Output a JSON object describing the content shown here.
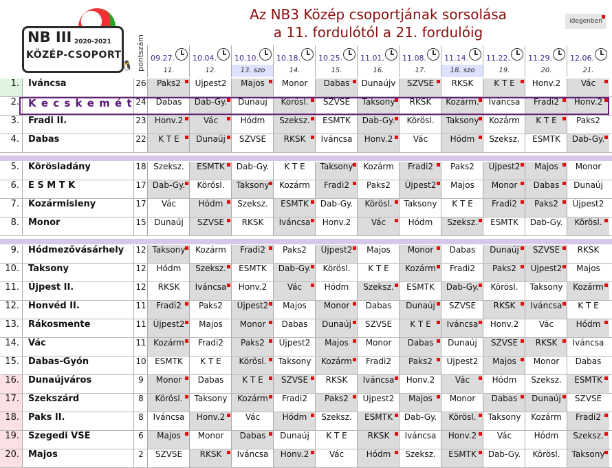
{
  "logo": {
    "nb": "NB III",
    "years": "2020-2021",
    "kozep": "KÖZÉP-CSOPORT"
  },
  "title": {
    "line1": "Az NB3 Közép csoportjának sorsolása",
    "line2": "a 11. fordulótól a 21. fordulóig"
  },
  "legend": "idegenben",
  "y_label": "pontszám",
  "colors": {
    "title": "#8b0d0d",
    "away_bg": "#dcdcdc",
    "marker": "#e01010",
    "separator": "#d8c7ea",
    "highlight_border": "#6a1f7a",
    "rank_green": "#dff5df",
    "rank_pink": "#fbe0e4"
  },
  "rounds": [
    {
      "date": "09.27.",
      "round": "11.",
      "sat": false
    },
    {
      "date": "10.04.",
      "round": "12.",
      "sat": false
    },
    {
      "date": "10.10.",
      "round": "13. szo",
      "sat": true
    },
    {
      "date": "10.18.",
      "round": "14.",
      "sat": false
    },
    {
      "date": "10.25.",
      "round": "15.",
      "sat": false
    },
    {
      "date": "11.01.",
      "round": "16.",
      "sat": false
    },
    {
      "date": "11.08.",
      "round": "17.",
      "sat": false
    },
    {
      "date": "11.14.",
      "round": "18. szo",
      "sat": true
    },
    {
      "date": "11.22.",
      "round": "19.",
      "sat": false
    },
    {
      "date": "11.29.",
      "round": "20.",
      "sat": false
    },
    {
      "date": "12.06.",
      "round": "21.",
      "sat": false
    }
  ],
  "rows": [
    {
      "rank": "1.",
      "team": "Iváncsa",
      "pts": "26",
      "opp": [
        "Paks2",
        "Újpest2",
        "Majos",
        "Monor",
        "Dabas",
        "Dunaújv",
        "SZVSE",
        "RKSK",
        "K T E",
        "Honv.2",
        "Vác"
      ],
      "away": [
        1,
        0,
        1,
        0,
        1,
        0,
        1,
        0,
        1,
        0,
        1
      ]
    },
    {
      "rank": "2.",
      "team": "K e c s k e m é t",
      "pts": "24",
      "opp": [
        "Dabas",
        "Dab-Gy.",
        "Dunaúj",
        "Körösl.",
        "SZVSE",
        "Taksony",
        "RKSK",
        "Kozárm.",
        "Iváncsa",
        "Fradi2",
        "Honv.2"
      ],
      "away": [
        0,
        1,
        0,
        1,
        0,
        1,
        0,
        1,
        0,
        1,
        1
      ]
    },
    {
      "rank": "3.",
      "team": "Fradi II.",
      "pts": "23",
      "opp": [
        "Honv.2",
        "Vác",
        "Hódm",
        "Szeksz.",
        "ESMTK",
        "Dab-Gy.",
        "Körösl.",
        "Taksony",
        "Kozárm",
        "K T E",
        "Paks2"
      ],
      "away": [
        1,
        1,
        0,
        1,
        0,
        1,
        0,
        1,
        0,
        1,
        0
      ]
    },
    {
      "rank": "4.",
      "team": "Dabas",
      "pts": "22",
      "opp": [
        "K T E",
        "Dunaúj",
        "SZVSE",
        "RKSK",
        "Iváncsa",
        "Honv.2",
        "Vác",
        "Hódm",
        "Szeksz.",
        "ESMTK",
        "Dab-Gy."
      ],
      "away": [
        1,
        1,
        0,
        1,
        0,
        1,
        0,
        1,
        0,
        0,
        1
      ]
    },
    {
      "sep": true
    },
    {
      "rank": "5.",
      "team": "Körösladány",
      "pts": "18",
      "opp": [
        "Szeksz.",
        "ESMTK",
        "Dab-Gy.",
        "K T E",
        "Taksony",
        "Kozárm",
        "Fradi2",
        "Paks2",
        "Újpest2",
        "Majos",
        "Monor"
      ],
      "away": [
        0,
        1,
        0,
        0,
        1,
        0,
        1,
        0,
        1,
        1,
        0
      ]
    },
    {
      "rank": "6.",
      "team": "E S M T K",
      "pts": "17",
      "opp": [
        "Dab-Gy.",
        "Körösl.",
        "Taksony",
        "Kozárm",
        "Fradi2",
        "Paks2",
        "Újpest2",
        "Majos",
        "Monor",
        "Dabas",
        "Dunaúj"
      ],
      "away": [
        1,
        0,
        1,
        0,
        1,
        0,
        1,
        0,
        1,
        1,
        0
      ]
    },
    {
      "rank": "7.",
      "team": "Kozármisleny",
      "pts": "17",
      "opp": [
        "Vác",
        "Hódm",
        "Szeksz.",
        "ESMTK",
        "Dab-Gy.",
        "Körösl.",
        "Taksony",
        "K T E",
        "Fradi2",
        "Paks2",
        "Újpest2"
      ],
      "away": [
        0,
        1,
        0,
        1,
        0,
        1,
        0,
        0,
        1,
        1,
        0
      ]
    },
    {
      "rank": "8.",
      "team": "Monor",
      "pts": "15",
      "opp": [
        "Dunaúj",
        "SZVSE",
        "RKSK",
        "Iváncsa",
        "Honv.2",
        "Vác",
        "Hódm",
        "Szeksz.",
        "ESMTK",
        "Dab-Gy.",
        "Körösl."
      ],
      "away": [
        0,
        1,
        0,
        1,
        0,
        1,
        0,
        1,
        0,
        0,
        1
      ]
    },
    {
      "sep": true
    },
    {
      "rank": "9.",
      "team": "Hódmezővásárhely",
      "pts": "12",
      "opp": [
        "Taksony",
        "Kozárm",
        "Fradi2",
        "Paks2",
        "Újpest2",
        "Majos",
        "Monor",
        "Dabas",
        "Dunaúj",
        "SZVSE",
        "RKSK"
      ],
      "away": [
        1,
        0,
        1,
        0,
        1,
        0,
        1,
        0,
        1,
        1,
        0
      ]
    },
    {
      "rank": "10.",
      "team": "Taksony",
      "pts": "12",
      "opp": [
        "Hódm",
        "Szeksz.",
        "ESMTK",
        "Dab-Gy.",
        "Körösl.",
        "K T E",
        "Kozárm",
        "Fradi2",
        "Paks2",
        "Újpest2",
        "Majos"
      ],
      "away": [
        0,
        1,
        0,
        1,
        0,
        0,
        1,
        0,
        1,
        1,
        0
      ]
    },
    {
      "rank": "11.",
      "team": "Újpest II.",
      "pts": "12",
      "opp": [
        "RKSK",
        "Iváncsa",
        "Honv.2",
        "Vác",
        "Hódm",
        "Szeksz.",
        "ESMTK",
        "Dab-Gy.",
        "Körösl.",
        "Taksony",
        "Kozárm"
      ],
      "away": [
        0,
        1,
        0,
        1,
        0,
        1,
        0,
        1,
        0,
        0,
        1
      ]
    },
    {
      "rank": "12.",
      "team": "Honvéd II.",
      "pts": "11",
      "opp": [
        "Fradi2",
        "Paks2",
        "Újpest2",
        "Majos",
        "Monor",
        "Dabas",
        "Dunaúj",
        "SZVSE",
        "RKSK",
        "Iváncsa",
        "K T E"
      ],
      "away": [
        1,
        0,
        1,
        0,
        1,
        0,
        1,
        0,
        1,
        1,
        0
      ]
    },
    {
      "rank": "13.",
      "team": "Rákosmente",
      "pts": "11",
      "opp": [
        "Újpest2",
        "Majos",
        "Monor",
        "Dabas",
        "Dunaúj",
        "SZVSE",
        "K T E",
        "Iváncsa",
        "Honv.2",
        "Vác",
        "Hódm"
      ],
      "away": [
        1,
        0,
        1,
        0,
        1,
        0,
        1,
        1,
        0,
        0,
        1
      ]
    },
    {
      "rank": "14.",
      "team": "Vác",
      "pts": "11",
      "opp": [
        "Kozárm",
        "Fradi2",
        "Paks2",
        "Újpest2",
        "Majos",
        "Monor",
        "Dabas",
        "Dunaúj",
        "SZVSE",
        "RKSK",
        "Iváncsa"
      ],
      "away": [
        1,
        0,
        1,
        0,
        1,
        0,
        1,
        0,
        1,
        1,
        0
      ]
    },
    {
      "rank": "15.",
      "team": "Dabas-Gyón",
      "pts": "10",
      "opp": [
        "ESMTK",
        "K T E",
        "Körösl.",
        "Taksony",
        "Kozárm",
        "Fradi2",
        "Paks2",
        "Újpest2",
        "Majos",
        "Monor",
        "Dabas"
      ],
      "away": [
        0,
        0,
        1,
        0,
        1,
        0,
        1,
        0,
        1,
        0,
        0
      ]
    },
    {
      "rank": "16.",
      "team": "Dunaújváros",
      "pts": "9",
      "opp": [
        "Monor",
        "Dabas",
        "K T E",
        "SZVSE",
        "RKSK",
        "Iváncsa",
        "Honv.2",
        "Vác",
        "Hódm",
        "Szeksz.",
        "ESMTK"
      ],
      "away": [
        1,
        0,
        1,
        1,
        0,
        1,
        0,
        1,
        0,
        0,
        1
      ]
    },
    {
      "rank": "17.",
      "team": "Szekszárd",
      "pts": "8",
      "opp": [
        "Körösl.",
        "Taksony",
        "Kozárm",
        "Fradi2",
        "Paks2",
        "Újpest2",
        "Majos",
        "Monor",
        "Dabas",
        "Dunaúj",
        "SZVSE"
      ],
      "away": [
        1,
        0,
        1,
        0,
        1,
        0,
        1,
        0,
        1,
        1,
        0
      ]
    },
    {
      "rank": "18.",
      "team": "Paks II.",
      "pts": "8",
      "opp": [
        "Iváncsa",
        "Honv.2",
        "Vác",
        "Hódm",
        "Szeksz.",
        "ESMTK",
        "Dab-Gy.",
        "Körösl.",
        "Taksony",
        "Kozárm",
        "Fradi2"
      ],
      "away": [
        0,
        1,
        0,
        1,
        0,
        1,
        0,
        1,
        0,
        0,
        1
      ]
    },
    {
      "rank": "19.",
      "team": "Szegedi VSE",
      "pts": "6",
      "opp": [
        "Majos",
        "Monor",
        "Dabas",
        "Dunaúj",
        "K T E",
        "RKSK",
        "Iváncsa",
        "Honv.2",
        "Vác",
        "Hódm",
        "Szeksz."
      ],
      "away": [
        1,
        0,
        1,
        0,
        0,
        1,
        0,
        1,
        0,
        0,
        1
      ]
    },
    {
      "rank": "20.",
      "team": "Majos",
      "pts": "2",
      "opp": [
        "SZVSE",
        "RKSK",
        "Iváncsa",
        "Honv.2",
        "Vác",
        "Hódm",
        "Szeksz.",
        "ESMTK",
        "Dab-Gy.",
        "Körösl.",
        "Taksony"
      ],
      "away": [
        0,
        1,
        0,
        1,
        0,
        1,
        0,
        1,
        0,
        0,
        1
      ]
    }
  ]
}
